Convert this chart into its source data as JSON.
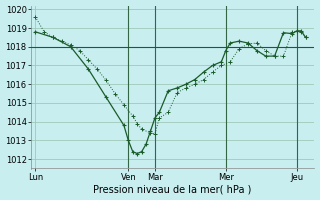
{
  "xlabel": "Pression niveau de la mer( hPa )",
  "bg_color": "#c8eef0",
  "grid_color": "#a0c8b8",
  "line_color": "#1a5c2a",
  "vline_color": "#336644",
  "ylim": [
    1011.5,
    1020.2
  ],
  "yticks": [
    1012,
    1013,
    1014,
    1015,
    1016,
    1017,
    1018,
    1019,
    1020
  ],
  "day_labels": [
    "Lun",
    "",
    "Ven",
    "Mar",
    "",
    "Mer",
    "",
    "Jeu"
  ],
  "xtick_labels": [
    "Lun",
    "Ven",
    "Mar",
    "Mer",
    "Jeu"
  ],
  "xtick_pos": [
    0.5,
    11,
    14,
    22,
    30
  ],
  "vlines": [
    11,
    14,
    22,
    30
  ],
  "line1_x": [
    0.5,
    1.5,
    2.5,
    3.5,
    4.5,
    5.5,
    6.5,
    7.5,
    8.5,
    9.5,
    10.5,
    11.5,
    12.0,
    12.5,
    13.5,
    14.0,
    14.5,
    15.5,
    16.5,
    17.5,
    18.5,
    19.5,
    20.5,
    21.5,
    22.5,
    23.5,
    24.5,
    25.5,
    26.5,
    27.5,
    28.5,
    29.5,
    30.5,
    31.0
  ],
  "line1_y": [
    1019.6,
    1018.8,
    1018.5,
    1018.3,
    1018.1,
    1017.8,
    1017.3,
    1016.8,
    1016.2,
    1015.5,
    1014.9,
    1014.3,
    1013.9,
    1013.6,
    1013.4,
    1013.35,
    1014.2,
    1014.5,
    1015.55,
    1015.8,
    1016.0,
    1016.25,
    1016.65,
    1017.0,
    1017.2,
    1017.9,
    1018.15,
    1018.2,
    1017.8,
    1017.5,
    1017.5,
    1018.8,
    1018.8,
    1018.5
  ],
  "line2_x": [
    0.5,
    2.5,
    4.5,
    6.5,
    8.5,
    10.5,
    11.0,
    11.5,
    12.0,
    12.5,
    13.0,
    13.5,
    14.0,
    14.5,
    15.5,
    16.5,
    17.5,
    18.5,
    19.5,
    20.5,
    21.5,
    22.0,
    22.5,
    23.5,
    24.5,
    25.5,
    26.5,
    27.5,
    28.5,
    29.5,
    30.0,
    30.5,
    31.0
  ],
  "line2_y": [
    1018.8,
    1018.5,
    1018.0,
    1016.8,
    1015.3,
    1013.8,
    1013.0,
    1012.4,
    1012.3,
    1012.4,
    1012.8,
    1013.5,
    1014.2,
    1014.5,
    1015.65,
    1015.8,
    1016.0,
    1016.25,
    1016.65,
    1017.0,
    1017.2,
    1017.8,
    1018.2,
    1018.3,
    1018.2,
    1017.8,
    1017.5,
    1017.5,
    1018.75,
    1018.7,
    1018.85,
    1018.85,
    1018.5
  ],
  "ref_y": 1018.0,
  "xmin": 0,
  "xmax": 32
}
